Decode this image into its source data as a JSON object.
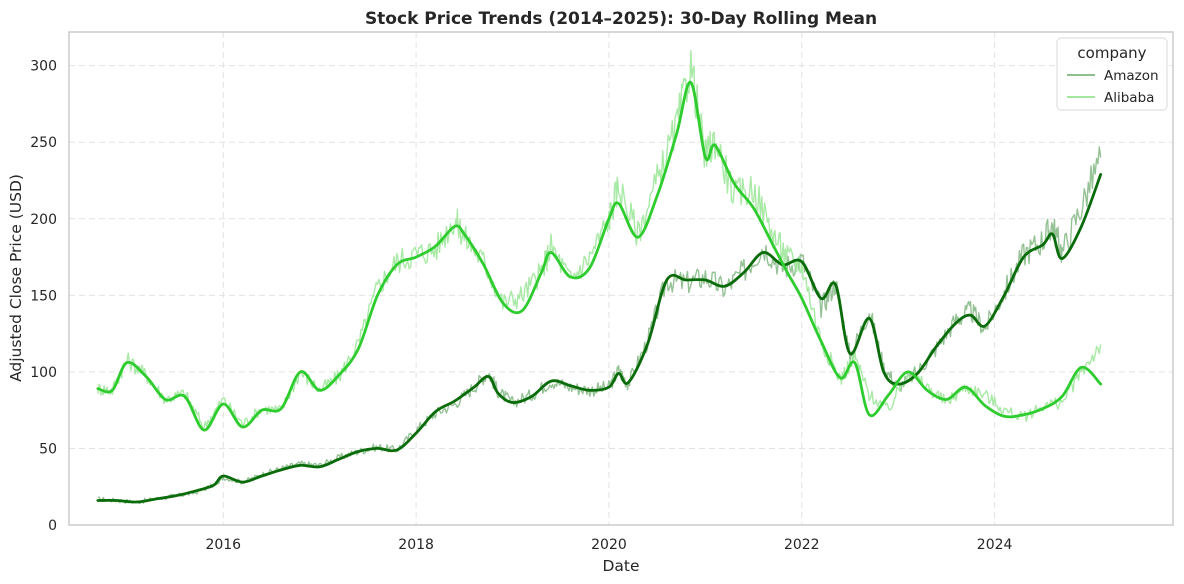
{
  "chart_data": {
    "type": "line",
    "title": "Stock Price Trends (2014–2025): 30-Day Rolling Mean",
    "xlabel": "Date",
    "ylabel": "Adjusted Close Price (USD)",
    "xlim": [
      2014.4,
      2025.85
    ],
    "ylim": [
      0,
      322
    ],
    "x_ticks": [
      2016,
      2018,
      2020,
      2022,
      2024
    ],
    "x_tick_labels": [
      "2016",
      "2018",
      "2020",
      "2022",
      "2024"
    ],
    "y_ticks": [
      0,
      50,
      100,
      150,
      200,
      250,
      300
    ],
    "y_tick_labels": [
      "0",
      "50",
      "100",
      "150",
      "200",
      "250",
      "300"
    ],
    "grid": true,
    "legend": {
      "title": "company",
      "placement": "top-right"
    },
    "series": [
      {
        "name": "Amazon",
        "raw_color": "#8fbf8f",
        "mean_color": "#0a6b0a",
        "x": [
          2014.7,
          2014.9,
          2015.1,
          2015.3,
          2015.5,
          2015.7,
          2015.9,
          2016.0,
          2016.2,
          2016.4,
          2016.6,
          2016.8,
          2017.0,
          2017.2,
          2017.4,
          2017.6,
          2017.8,
          2018.0,
          2018.2,
          2018.4,
          2018.6,
          2018.75,
          2018.85,
          2019.0,
          2019.2,
          2019.4,
          2019.6,
          2019.8,
          2020.0,
          2020.1,
          2020.2,
          2020.4,
          2020.6,
          2020.8,
          2021.0,
          2021.2,
          2021.4,
          2021.6,
          2021.8,
          2022.0,
          2022.2,
          2022.35,
          2022.5,
          2022.7,
          2022.85,
          2023.0,
          2023.2,
          2023.4,
          2023.6,
          2023.75,
          2023.9,
          2024.1,
          2024.3,
          2024.5,
          2024.6,
          2024.7,
          2024.9,
          2025.1
        ],
        "raw_y": [
          17,
          16,
          15,
          17,
          19,
          21,
          26,
          31,
          28,
          33,
          37,
          40,
          39,
          44,
          48,
          51,
          49,
          62,
          73,
          79,
          90,
          100,
          87,
          80,
          85,
          94,
          90,
          88,
          90,
          101,
          92,
          120,
          160,
          158,
          162,
          154,
          166,
          182,
          168,
          173,
          142,
          158,
          110,
          140,
          103,
          90,
          100,
          116,
          134,
          140,
          128,
          152,
          177,
          186,
          196,
          178,
          208,
          240
        ],
        "mean_y": [
          16,
          16,
          15,
          17,
          19,
          22,
          26,
          32,
          28,
          32,
          36,
          39,
          38,
          43,
          48,
          50,
          49,
          60,
          74,
          81,
          90,
          97,
          86,
          80,
          84,
          94,
          91,
          88,
          90,
          99,
          93,
          118,
          160,
          160,
          160,
          156,
          165,
          178,
          170,
          172,
          148,
          157,
          112,
          135,
          100,
          92,
          99,
          117,
          132,
          137,
          130,
          150,
          175,
          183,
          190,
          174,
          195,
          229
        ]
      },
      {
        "name": "Alibaba",
        "raw_color": "#a3e8a0",
        "mean_color": "#2ecc2e",
        "x": [
          2014.7,
          2014.85,
          2015.0,
          2015.2,
          2015.4,
          2015.6,
          2015.8,
          2016.0,
          2016.2,
          2016.4,
          2016.6,
          2016.8,
          2017.0,
          2017.2,
          2017.4,
          2017.6,
          2017.8,
          2018.0,
          2018.2,
          2018.4,
          2018.5,
          2018.7,
          2018.9,
          2019.1,
          2019.3,
          2019.4,
          2019.6,
          2019.8,
          2020.0,
          2020.1,
          2020.3,
          2020.5,
          2020.7,
          2020.85,
          2021.0,
          2021.1,
          2021.3,
          2021.5,
          2021.7,
          2021.85,
          2022.0,
          2022.2,
          2022.4,
          2022.55,
          2022.7,
          2022.9,
          2023.1,
          2023.3,
          2023.5,
          2023.7,
          2023.9,
          2024.1,
          2024.3,
          2024.5,
          2024.7,
          2024.9,
          2025.1
        ],
        "raw_y": [
          89,
          88,
          108,
          98,
          82,
          86,
          64,
          82,
          66,
          76,
          75,
          100,
          88,
          97,
          118,
          155,
          172,
          177,
          180,
          200,
          188,
          172,
          145,
          150,
          165,
          182,
          160,
          175,
          200,
          222,
          190,
          225,
          260,
          300,
          240,
          252,
          215,
          220,
          190,
          175,
          170,
          120,
          95,
          110,
          85,
          75,
          100,
          90,
          80,
          90,
          85,
          75,
          70,
          78,
          80,
          100,
          118
        ],
        "mean_y": [
          89,
          88,
          106,
          97,
          82,
          84,
          62,
          79,
          64,
          75,
          76,
          100,
          88,
          98,
          115,
          150,
          170,
          175,
          182,
          195,
          190,
          170,
          145,
          140,
          165,
          178,
          162,
          168,
          200,
          210,
          188,
          215,
          255,
          289,
          240,
          248,
          223,
          207,
          183,
          165,
          148,
          120,
          96,
          106,
          72,
          85,
          100,
          88,
          82,
          90,
          78,
          71,
          72,
          76,
          84,
          103,
          92
        ]
      }
    ]
  }
}
